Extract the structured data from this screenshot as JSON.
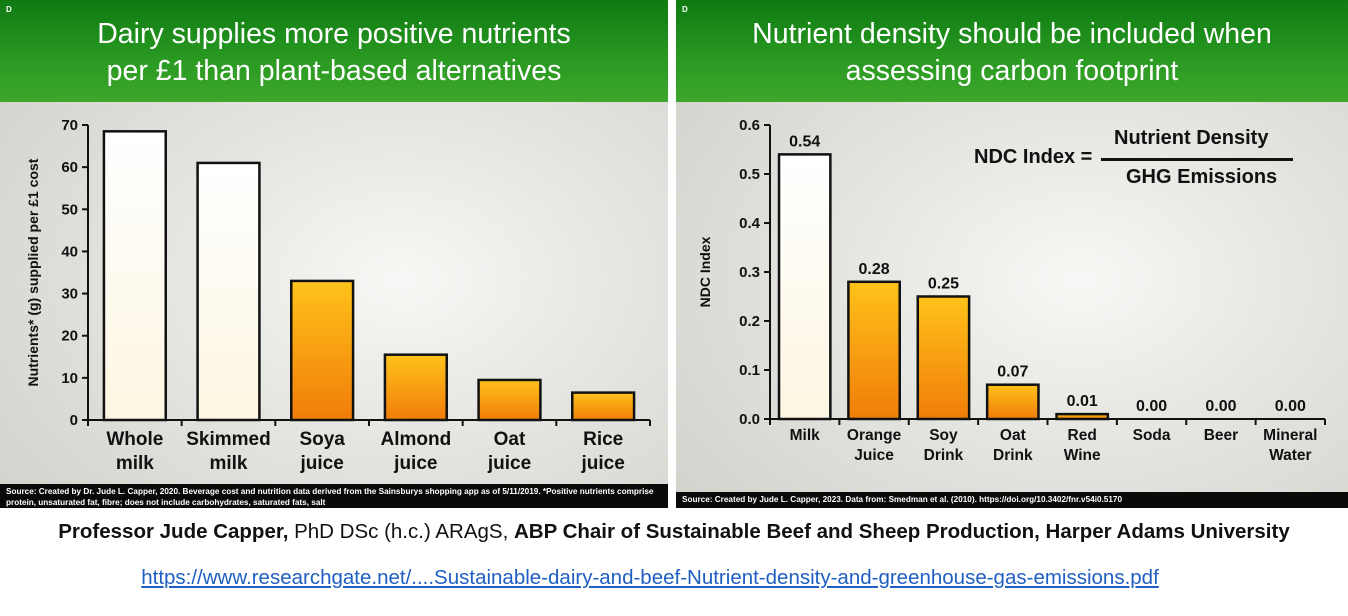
{
  "left_slide": {
    "tag": "D",
    "title_line1": "Dairy supplies more positive nutrients",
    "title_line2": "per £1 than plant-based alternatives",
    "source": "Source: Created by Dr. Jude L. Capper, 2020. Beverage cost and nutrition data derived from the Sainsburys shopping app as of 5/11/2019. *Positive nutrients comprise protein, unsaturated fat, fibre; does not include carbohydrates, saturated fats, salt"
  },
  "right_slide": {
    "tag": "D",
    "title_line1": "Nutrient density should be included when",
    "title_line2": "assessing carbon footprint",
    "formula_lhs": "NDC Index =",
    "formula_numerator": "Nutrient Density",
    "formula_denominator": "GHG Emissions",
    "source": "Source: Created by Jude L. Capper, 2023. Data from: Smedman et al. (2010). https://doi.org/10.3402/fnr.v54i0.5170"
  },
  "chart_data": [
    {
      "type": "bar",
      "title": "Dairy supplies more positive nutrients per £1 than plant-based alternatives",
      "categories": [
        [
          "Whole",
          "milk"
        ],
        [
          "Skimmed",
          "milk"
        ],
        [
          "Soya",
          "juice"
        ],
        [
          "Almond",
          "juice"
        ],
        [
          "Oat",
          "juice"
        ],
        [
          "Rice",
          "juice"
        ]
      ],
      "values": [
        68.5,
        61,
        33,
        15.5,
        9.5,
        6.5
      ],
      "colors": [
        "white",
        "white",
        "orange",
        "orange",
        "orange",
        "orange"
      ],
      "xlabel": "",
      "ylabel": "Nutrients* (g) supplied per £1 cost",
      "ylim": [
        0,
        70
      ],
      "yticks": [
        "0",
        "10",
        "20",
        "30",
        "40",
        "50",
        "60",
        "70"
      ],
      "grid": false
    },
    {
      "type": "bar",
      "title": "Nutrient density should be included when assessing carbon footprint",
      "categories": [
        [
          "Milk"
        ],
        [
          "Orange",
          "Juice"
        ],
        [
          "Soy",
          "Drink"
        ],
        [
          "Oat",
          "Drink"
        ],
        [
          "Red",
          "Wine"
        ],
        [
          "Soda"
        ],
        [
          "Beer"
        ],
        [
          "Mineral",
          "Water"
        ]
      ],
      "values": [
        0.54,
        0.28,
        0.25,
        0.07,
        0.01,
        0.0,
        0.0,
        0.0
      ],
      "data_labels": [
        "0.54",
        "0.28",
        "0.25",
        "0.07",
        "0.01",
        "0.00",
        "0.00",
        "0.00"
      ],
      "colors": [
        "white",
        "orange",
        "orange",
        "orange",
        "orange",
        "orange",
        "orange",
        "orange"
      ],
      "xlabel": "",
      "ylabel": "NDC Index",
      "ylim": [
        0,
        0.6
      ],
      "yticks": [
        "0.0",
        "0.1",
        "0.2",
        "0.3",
        "0.4",
        "0.5",
        "0.6"
      ],
      "grid": false
    }
  ],
  "caption": {
    "name_bold": "Professor Jude Capper,",
    "degrees": " PhD DSc (h.c.) ARAgS, ",
    "position_bold": "ABP Chair of Sustainable Beef and Sheep Production, Harper Adams University"
  },
  "link": {
    "text": "https://www.researchgate.net/....Sustainable-dairy-and-beef-Nutrient-density-and-greenhouse-gas-emissions.pdf"
  },
  "colors": {
    "header_green": "#1f8a1a",
    "bar_white": "#ffffff",
    "bar_orange_top": "#ffc21a",
    "bar_orange_bottom": "#f07d0a",
    "link_blue": "#1f5fc2"
  }
}
